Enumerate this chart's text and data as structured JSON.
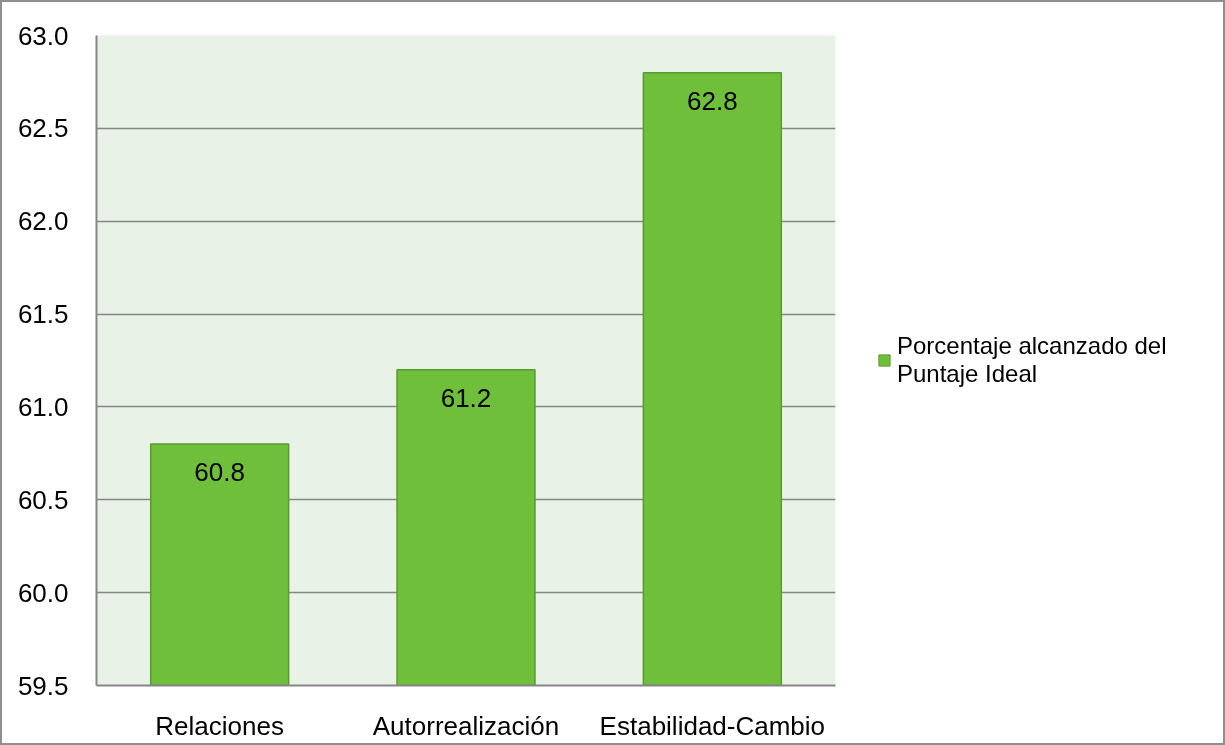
{
  "chart_data": {
    "type": "bar",
    "categories": [
      "Relaciones",
      "Autorrealización",
      "Estabilidad-Cambio"
    ],
    "series": [
      {
        "name": "Porcentaje alcanzado del Puntaje Ideal",
        "color": "#6fbf3b",
        "values": [
          60.8,
          61.2,
          62.8
        ]
      }
    ],
    "ylim": [
      59.5,
      63.0
    ],
    "yticks": [
      59.5,
      {
        "value": 60,
        "label": "60.0"
      },
      60.5,
      {
        "value": 61,
        "label": "61.0"
      },
      61.5,
      {
        "value": 62,
        "label": "62.0"
      },
      62.5,
      {
        "value": 63,
        "label": "63.0"
      }
    ],
    "grid": "y",
    "legend": "right",
    "data_labels": true
  }
}
